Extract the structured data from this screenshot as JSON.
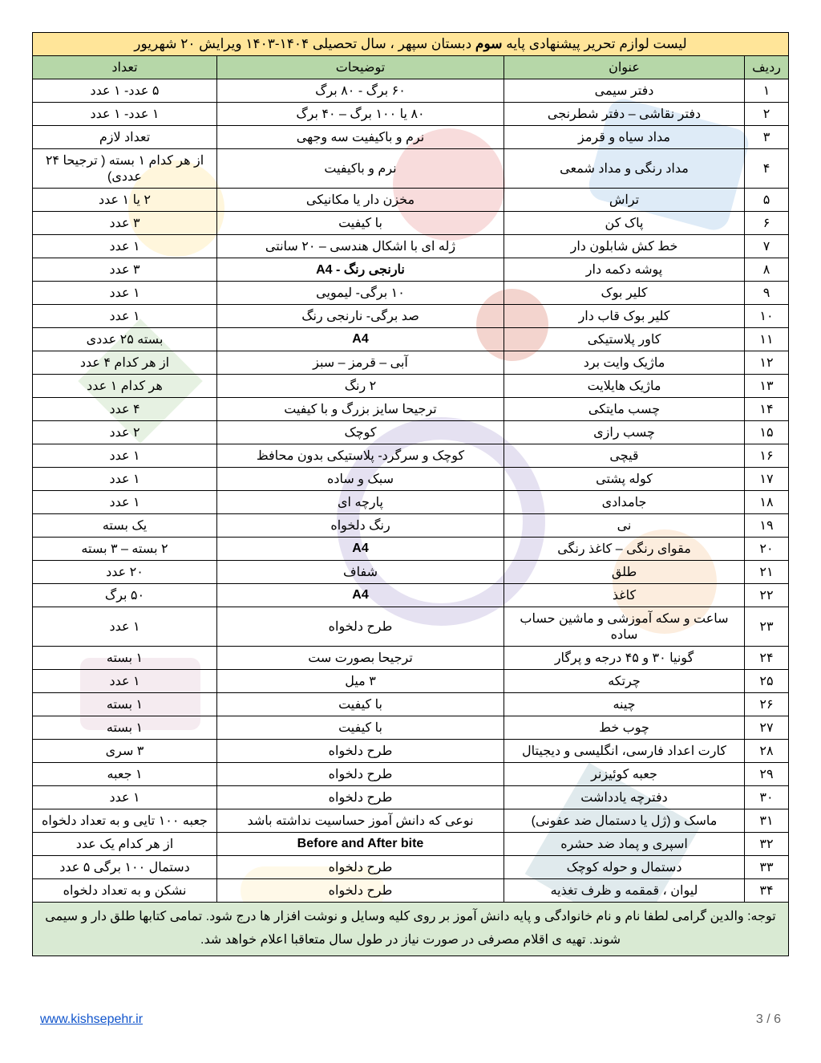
{
  "title_prefix": "لیست لوازم تحریر پیشنهادی پایه ",
  "title_bold": "سوم",
  "title_suffix": " دبستان سپهر ، سال تحصیلی ۱۴۰۴-۱۴۰۳ ویرایش ۲۰ شهریور",
  "headers": {
    "row": "ردیف",
    "title": "عنوان",
    "desc": "توضیحات",
    "qty": "تعداد"
  },
  "rows": [
    {
      "n": "۱",
      "t": "دفتر سیمی",
      "d": "۶۰ برگ - ۸۰ برگ",
      "q": "۵ عدد- ۱ عدد"
    },
    {
      "n": "۲",
      "t": "دفتر نقاشی – دفتر شطرنجی",
      "d": "۸۰ یا ۱۰۰ برگ – ۴۰ برگ",
      "q": "۱ عدد- ۱ عدد"
    },
    {
      "n": "۳",
      "t": "مداد سیاه و قرمز",
      "d": "نرم و باکیفیت سه وجهی",
      "q": "تعداد لازم"
    },
    {
      "n": "۴",
      "t": "مداد رنگی و مداد شمعی",
      "d": "نرم و باکیفیت",
      "q": "از هر کدام ۱ بسته ( ترجیحا ۲۴ عددی)"
    },
    {
      "n": "۵",
      "t": "تراش",
      "d": "مخزن دار یا مکانیکی",
      "q": "۲ یا ۱ عدد"
    },
    {
      "n": "۶",
      "t": "پاک کن",
      "d": "با کیفیت",
      "q": "۳ عدد"
    },
    {
      "n": "۷",
      "t": "خط کش شابلون دار",
      "d": "ژله ای با اشکال هندسی – ۲۰ سانتی",
      "q": "۱ عدد"
    },
    {
      "n": "۸",
      "t": "پوشه دکمه دار",
      "d": "A4 - نارنجی رنگ",
      "q": "۳ عدد"
    },
    {
      "n": "۹",
      "t": "کلیر بوک",
      "d": "۱۰ برگی- لیمویی",
      "q": "۱ عدد"
    },
    {
      "n": "۱۰",
      "t": "کلیر بوک قاب دار",
      "d": "صد برگی- نارنجی  رنگ",
      "q": "۱ عدد"
    },
    {
      "n": "۱۱",
      "t": "کاور پلاستیکی",
      "d": "A4",
      "q": "بسته ۲۵ عددی"
    },
    {
      "n": "۱۲",
      "t": "ماژیک وایت برد",
      "d": "آبی – قرمز – سبز",
      "q": "از هر کدام ۴ عدد"
    },
    {
      "n": "۱۳",
      "t": "ماژیک هایلایت",
      "d": "۲ رنگ",
      "q": "هر کدام ۱ عدد"
    },
    {
      "n": "۱۴",
      "t": "چسب مایتکی",
      "d": "ترجیحا سایز بزرگ و با کیفیت",
      "q": "۴ عدد"
    },
    {
      "n": "۱۵",
      "t": "چسب رازی",
      "d": "کوچک",
      "q": "۲ عدد"
    },
    {
      "n": "۱۶",
      "t": "قیچی",
      "d": "کوچک و سرگرد- پلاستیکی بدون محافظ",
      "q": "۱ عدد"
    },
    {
      "n": "۱۷",
      "t": "کوله پشتی",
      "d": "سبک و ساده",
      "q": "۱ عدد"
    },
    {
      "n": "۱۸",
      "t": "جامدادی",
      "d": "پارچه ای",
      "q": "۱ عدد"
    },
    {
      "n": "۱۹",
      "t": "نی",
      "d": "رنگ دلخواه",
      "q": "یک بسته"
    },
    {
      "n": "۲۰",
      "t": "مقوای رنگی – کاغذ رنگی",
      "d": "A4",
      "q": "۲ بسته – ۳ بسته"
    },
    {
      "n": "۲۱",
      "t": "طلق",
      "d": "شفاف",
      "q": "۲۰ عدد"
    },
    {
      "n": "۲۲",
      "t": "کاغذ",
      "d": "A4",
      "q": "۵۰ برگ"
    },
    {
      "n": "۲۳",
      "t": "ساعت و سکه آموزشی و ماشین حساب ساده",
      "d": "طرح دلخواه",
      "q": "۱ عدد"
    },
    {
      "n": "۲۴",
      "t": "گونیا ۳۰ و ۴۵ درجه و پرگار",
      "d": "ترجیحا بصورت ست",
      "q": "۱ بسته"
    },
    {
      "n": "۲۵",
      "t": "چرتکه",
      "d": "۳ میل",
      "q": "۱ عدد"
    },
    {
      "n": "۲۶",
      "t": "چینه",
      "d": "با کیفیت",
      "q": "۱ بسته"
    },
    {
      "n": "۲۷",
      "t": "چوب خط",
      "d": "با کیفیت",
      "q": "۱ بسته"
    },
    {
      "n": "۲۸",
      "t": "کارت اعداد فارسی، انگلیسی و دیجیتال",
      "d": "طرح دلخواه",
      "q": "۳ سری"
    },
    {
      "n": "۲۹",
      "t": "جعبه کوئیزنر",
      "d": "طرح دلخواه",
      "q": "۱ جعبه"
    },
    {
      "n": "۳۰",
      "t": "دفترچه یادداشت",
      "d": "طرح دلخواه",
      "q": "۱ عدد"
    },
    {
      "n": "۳۱",
      "t": "ماسک و (ژل یا دستمال ضد عفونی)",
      "d": "نوعی که دانش آموز حساسیت نداشته باشد",
      "q": "جعبه ۱۰۰ تایی و  به تعداد دلخواه"
    },
    {
      "n": "۳۲",
      "t": "اسپری و پماد ضد حشره",
      "d": "Before and After bite",
      "q": "از هر کدام یک عدد"
    },
    {
      "n": "۳۳",
      "t": "دستمال و حوله کوچک",
      "d": "طرح دلخواه",
      "q": "دستمال ۱۰۰ برگی ۵ عدد"
    },
    {
      "n": "۳۴",
      "t": "لیوان ، قمقمه و ظرف تغذیه",
      "d": "طرح دلخواه",
      "q": "نشکن و به تعداد دلخواه"
    }
  ],
  "note": "توجه:  والدین گرامی لطفا نام و نام خانوادگی و پایه دانش آموز بر روی کلیه وسایل و نوشت افزار ها درج شود. تمامی کتابها طلق دار و سیمی شوند. تهیه ی اقلام مصرفی در صورت نیاز در طول سال متعاقبا اعلام خواهد شد.",
  "footer": {
    "url_text": "www.kishsepehr.ir",
    "url_href": "http://www.kishsepehr.ir",
    "page": "3 / 6"
  },
  "bold_desc_rows": [
    8,
    11,
    20,
    22,
    32
  ]
}
